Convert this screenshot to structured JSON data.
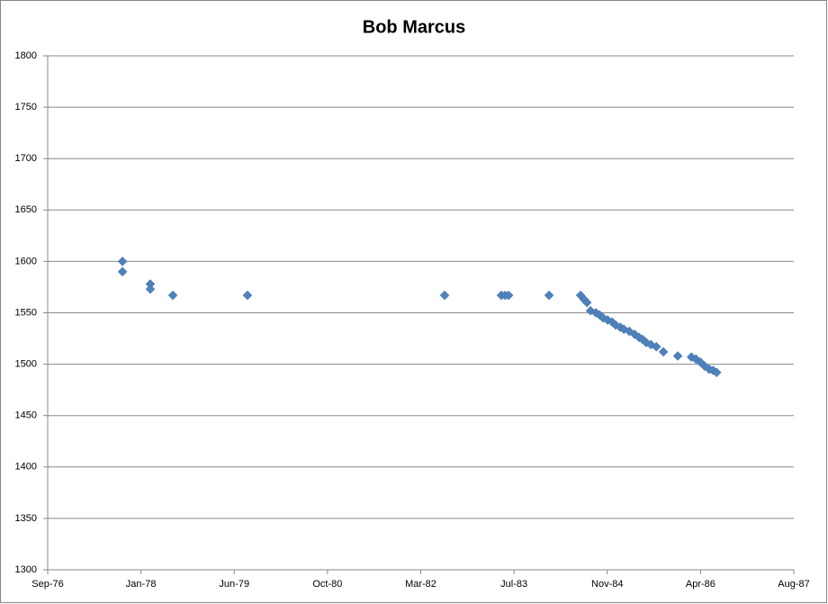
{
  "chart_data": {
    "type": "scatter",
    "title": "Bob Marcus",
    "series": [
      {
        "color": "#4f81bd",
        "x": [
          28421,
          28421,
          28570,
          28570,
          28691,
          29091,
          30148,
          30452,
          30472,
          30491,
          30708,
          30877,
          30896,
          30911,
          30930,
          30959,
          30978,
          30998,
          31022,
          31046,
          31065,
          31090,
          31109,
          31138,
          31167,
          31191,
          31210,
          31229,
          31254,
          31283,
          31321,
          31398,
          31471,
          31495,
          31519,
          31543,
          31567,
          31587,
          31606
        ],
        "values": [
          1600,
          1590,
          1578,
          1573,
          1567,
          1567,
          1567,
          1567,
          1567,
          1567,
          1567,
          1567,
          1563,
          1560,
          1552,
          1550,
          1548,
          1545,
          1543,
          1541,
          1538,
          1536,
          1534,
          1532,
          1529,
          1526,
          1524,
          1521,
          1519,
          1517,
          1512,
          1508,
          1507,
          1505,
          1502,
          1498,
          1495,
          1494,
          1492
        ]
      }
    ],
    "xlim": [
      28020,
      32020
    ],
    "xticks": [
      {
        "value": 28020,
        "label": "Sep-76"
      },
      {
        "value": 28520,
        "label": "Jan-78"
      },
      {
        "value": 29020,
        "label": "Jun-79"
      },
      {
        "value": 29520,
        "label": "Oct-80"
      },
      {
        "value": 30020,
        "label": "Mar-82"
      },
      {
        "value": 30520,
        "label": "Jul-83"
      },
      {
        "value": 31020,
        "label": "Nov-84"
      },
      {
        "value": 31520,
        "label": "Apr-86"
      },
      {
        "value": 32020,
        "label": "Aug-87"
      }
    ],
    "ylim": [
      1300,
      1800
    ],
    "yticks": [
      1300,
      1350,
      1400,
      1450,
      1500,
      1550,
      1600,
      1650,
      1700,
      1750,
      1800
    ],
    "grid": true
  }
}
